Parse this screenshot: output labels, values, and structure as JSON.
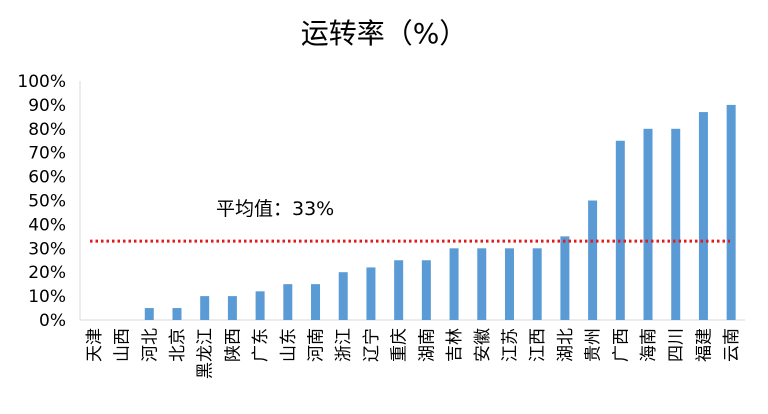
{
  "chart_data": {
    "type": "bar",
    "title": "运转率（%）",
    "categories": [
      "天津",
      "山西",
      "河北",
      "北京",
      "黑龙江",
      "陕西",
      "广东",
      "山东",
      "河南",
      "浙江",
      "辽宁",
      "重庆",
      "湖南",
      "吉林",
      "安徽",
      "江苏",
      "江西",
      "湖北",
      "贵州",
      "广西",
      "海南",
      "四川",
      "福建",
      "云南"
    ],
    "values": [
      0,
      0,
      5,
      5,
      10,
      10,
      12,
      15,
      15,
      20,
      22,
      25,
      25,
      30,
      30,
      30,
      30,
      35,
      50,
      75,
      80,
      80,
      87,
      90
    ],
    "ylim": [
      0,
      100
    ],
    "y_ticks": [
      "0%",
      "10%",
      "20%",
      "30%",
      "40%",
      "50%",
      "60%",
      "70%",
      "80%",
      "90%",
      "100%"
    ],
    "reference_line": {
      "value": 33,
      "style": "dotted",
      "color": "#e31a1c",
      "label": "平均值：33%"
    },
    "bar_color": "#5b9bd5",
    "grid": false,
    "legend": "none"
  }
}
